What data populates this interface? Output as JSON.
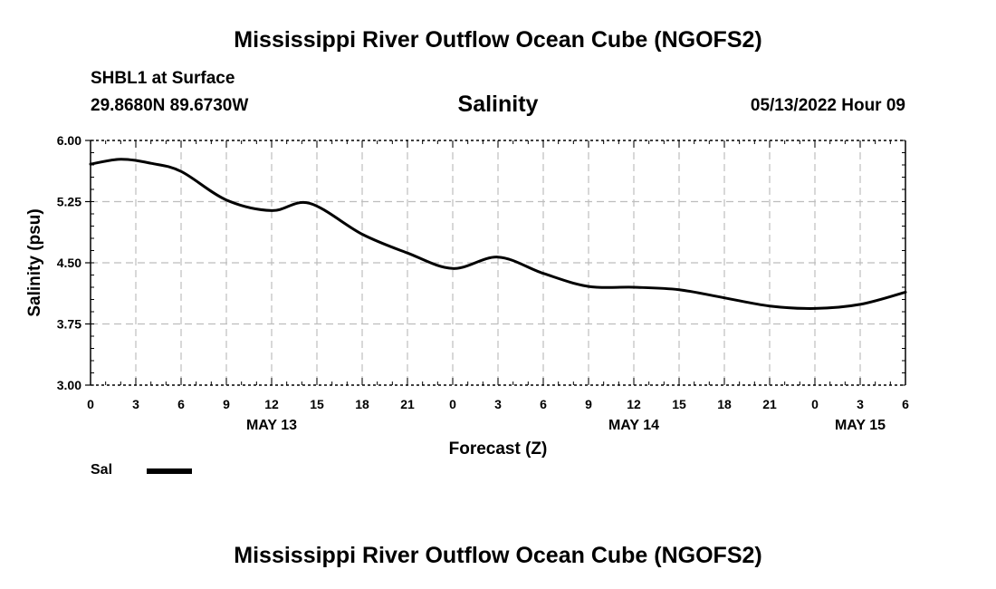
{
  "header": {
    "title": "Mississippi River Outflow Ocean Cube (NGOFS2)",
    "station": "SHBL1 at Surface",
    "coordinates": "29.8680N  89.6730W",
    "variable": "Salinity",
    "timestamp": "05/13/2022 Hour 09"
  },
  "footer": {
    "title": "Mississippi River Outflow Ocean Cube (NGOFS2)"
  },
  "legend": {
    "label": "Sal",
    "color": "#000000"
  },
  "chart_data": {
    "type": "line",
    "title": "Salinity",
    "xlabel": "Forecast (Z)",
    "ylabel": "Salinity (psu)",
    "xlim": [
      0,
      54
    ],
    "ylim": [
      3.0,
      6.0
    ],
    "grid": true,
    "legend_position": "bottom-left",
    "y_ticks": [
      "3.00",
      "3.75",
      "4.50",
      "5.25",
      "6.00"
    ],
    "y_tick_values": [
      3.0,
      3.75,
      4.5,
      5.25,
      6.0
    ],
    "x_ticks": [
      "0",
      "3",
      "6",
      "9",
      "12",
      "15",
      "18",
      "21",
      "0",
      "3",
      "6",
      "9",
      "12",
      "15",
      "18",
      "21",
      "0",
      "3",
      "6"
    ],
    "date_labels": [
      {
        "label": "MAY 13",
        "hour": 12
      },
      {
        "label": "MAY 14",
        "hour": 36
      },
      {
        "label": "MAY 15",
        "hour": 51
      }
    ],
    "series": [
      {
        "name": "Sal",
        "x": [
          0,
          2,
          4,
          6,
          9,
          12,
          14.5,
          18,
          21,
          24,
          27,
          30,
          33,
          36,
          39,
          42,
          45,
          48,
          51,
          54
        ],
        "values": [
          5.71,
          5.77,
          5.72,
          5.62,
          5.27,
          5.14,
          5.23,
          4.85,
          4.62,
          4.43,
          4.57,
          4.37,
          4.21,
          4.2,
          4.17,
          4.07,
          3.97,
          3.94,
          3.99,
          4.14
        ]
      }
    ]
  }
}
